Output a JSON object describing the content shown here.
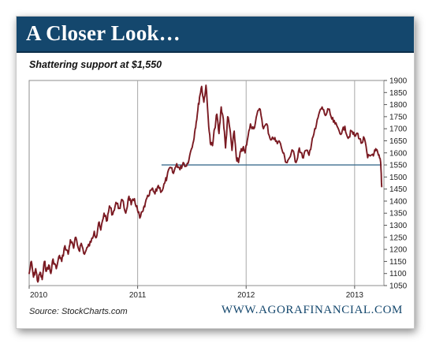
{
  "header": {
    "title": "A Closer Look…"
  },
  "footer": {
    "source": "Source:  StockCharts.com",
    "website": "WWW.AGORAFINANCIAL.COM"
  },
  "colors": {
    "header_bg": "#14476d",
    "series": "#7a1a22",
    "support_line": "#3d6f8f"
  },
  "chart_data": {
    "type": "line",
    "title": "Shattering support at $1,550",
    "xlabel": "",
    "ylabel": "",
    "xlim": [
      2010.0,
      2013.27
    ],
    "ylim": [
      1050,
      1900
    ],
    "yscale": "linear",
    "x_ticks": [
      "2010",
      "2011",
      "2012",
      "2013"
    ],
    "y_ticks": [
      1900,
      1850,
      1800,
      1750,
      1700,
      1650,
      1600,
      1550,
      1500,
      1450,
      1400,
      1350,
      1300,
      1250,
      1200,
      1150,
      1100,
      1050
    ],
    "grid": "vertical lines at year boundaries",
    "legend": "none",
    "reference_line": {
      "y": 1550,
      "x_start": 2011.22,
      "x_end": 2013.25
    },
    "series": [
      {
        "x": [
          2010.0,
          2010.02,
          2010.04,
          2010.06,
          2010.08,
          2010.1,
          2010.12,
          2010.14,
          2010.16,
          2010.18,
          2010.2,
          2010.22,
          2010.25,
          2010.28,
          2010.3,
          2010.33,
          2010.36,
          2010.38,
          2010.41,
          2010.43,
          2010.46,
          2010.48,
          2010.51,
          2010.54,
          2010.57,
          2010.6,
          2010.62,
          2010.64,
          2010.66,
          2010.69,
          2010.72,
          2010.74,
          2010.77,
          2010.8,
          2010.83,
          2010.86,
          2010.89,
          2010.92,
          2010.94,
          2010.97,
          2011.0,
          2011.02,
          2011.05,
          2011.07,
          2011.1,
          2011.13,
          2011.16,
          2011.19,
          2011.22,
          2011.25,
          2011.27,
          2011.3,
          2011.33,
          2011.36,
          2011.39,
          2011.42,
          2011.45,
          2011.48,
          2011.51,
          2011.53,
          2011.55,
          2011.57,
          2011.59,
          2011.61,
          2011.63,
          2011.65,
          2011.67,
          2011.69,
          2011.71,
          2011.73,
          2011.75,
          2011.77,
          2011.79,
          2011.81,
          2011.83,
          2011.85,
          2011.87,
          2011.89,
          2011.91,
          2011.93,
          2011.95,
          2011.97,
          2011.99,
          2012.01,
          2012.04,
          2012.07,
          2012.1,
          2012.13,
          2012.16,
          2012.19,
          2012.22,
          2012.25,
          2012.28,
          2012.31,
          2012.34,
          2012.37,
          2012.4,
          2012.43,
          2012.46,
          2012.49,
          2012.52,
          2012.55,
          2012.58,
          2012.61,
          2012.64,
          2012.67,
          2012.7,
          2012.73,
          2012.76,
          2012.79,
          2012.82,
          2012.85,
          2012.88,
          2012.91,
          2012.94,
          2012.97,
          2013.0,
          2013.03,
          2013.06,
          2013.09,
          2013.12,
          2013.15,
          2013.18,
          2013.2,
          2013.22,
          2013.24,
          2013.25
        ],
        "values": [
          1100,
          1150,
          1085,
          1120,
          1065,
          1105,
          1075,
          1150,
          1110,
          1135,
          1100,
          1160,
          1120,
          1175,
          1150,
          1215,
          1180,
          1240,
          1205,
          1250,
          1195,
          1225,
          1180,
          1210,
          1230,
          1275,
          1250,
          1310,
          1280,
          1350,
          1320,
          1380,
          1345,
          1395,
          1370,
          1405,
          1350,
          1420,
          1385,
          1410,
          1360,
          1330,
          1360,
          1390,
          1420,
          1450,
          1430,
          1465,
          1440,
          1475,
          1500,
          1540,
          1515,
          1555,
          1530,
          1560,
          1545,
          1590,
          1640,
          1700,
          1760,
          1830,
          1875,
          1810,
          1880,
          1745,
          1640,
          1630,
          1700,
          1760,
          1680,
          1790,
          1740,
          1620,
          1750,
          1700,
          1610,
          1690,
          1580,
          1560,
          1605,
          1620,
          1600,
          1650,
          1720,
          1700,
          1760,
          1780,
          1700,
          1720,
          1660,
          1660,
          1650,
          1645,
          1600,
          1560,
          1580,
          1610,
          1560,
          1620,
          1580,
          1610,
          1590,
          1660,
          1700,
          1760,
          1790,
          1755,
          1780,
          1740,
          1720,
          1700,
          1680,
          1710,
          1660,
          1690,
          1670,
          1680,
          1640,
          1660,
          1580,
          1590,
          1600,
          1610,
          1590,
          1560,
          1460
        ]
      }
    ]
  }
}
